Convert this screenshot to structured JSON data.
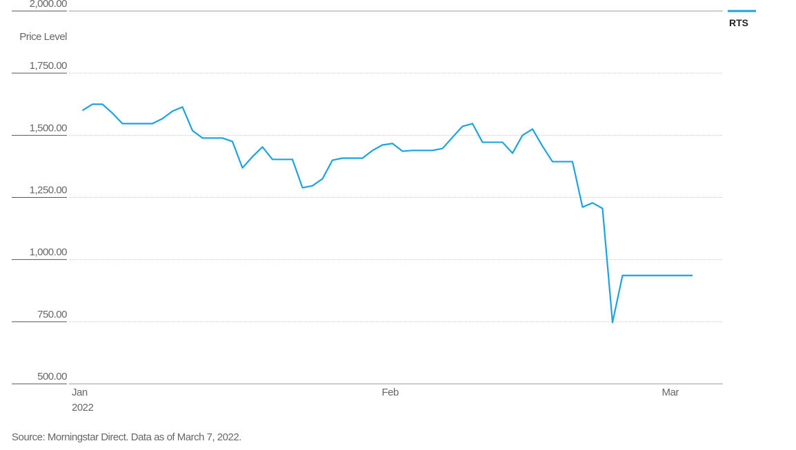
{
  "chart_data": {
    "type": "line",
    "categories": [
      "Jan",
      null,
      null,
      null,
      null,
      null,
      null,
      null,
      null,
      null,
      null,
      null,
      null,
      null,
      null,
      null,
      null,
      null,
      null,
      null,
      null,
      null,
      null,
      null,
      null,
      null,
      null,
      null,
      null,
      null,
      null,
      "Feb",
      null,
      null,
      null,
      null,
      null,
      null,
      null,
      null,
      null,
      null,
      null,
      null,
      null,
      null,
      null,
      null,
      null,
      null,
      null,
      null,
      null,
      null,
      null,
      null,
      null,
      null,
      null,
      "Mar",
      null,
      null,
      null
    ],
    "x_sublabel": "2022",
    "series": [
      {
        "name": "RTS",
        "color": "#1ba3e1",
        "values": [
          null,
          1600,
          1625,
          1625,
          1589,
          1547,
          1547,
          1547,
          1547,
          1567,
          1597,
          1614,
          1519,
          1489,
          1489,
          1489,
          1475,
          1369,
          1414,
          1453,
          1403,
          1403,
          1403,
          1289,
          1297,
          1325,
          1400,
          1408,
          1408,
          1408,
          1439,
          1461,
          1467,
          1436,
          1439,
          1439,
          1439,
          1447,
          1492,
          1536,
          1547,
          1472,
          1472,
          1472,
          1428,
          1500,
          1525,
          1456,
          1394,
          1394,
          1394,
          1211,
          1228,
          1206,
          747,
          936,
          936,
          936,
          936,
          936,
          936,
          936,
          936
        ]
      }
    ],
    "ylabel": "Price Level",
    "ylim": [
      500,
      2000
    ],
    "yticks": [
      {
        "value": 500,
        "label": "500.00"
      },
      {
        "value": 750,
        "label": "750.00"
      },
      {
        "value": 1000,
        "label": "1,000.00"
      },
      {
        "value": 1250,
        "label": "1,250.00"
      },
      {
        "value": 1500,
        "label": "1,500.00"
      },
      {
        "value": 1750,
        "label": "1,750.00"
      },
      {
        "value": 2000,
        "label": "2,000.00"
      }
    ],
    "grid": true,
    "legend": "top-right",
    "source": "Source: Morningstar Direct. Data as of March 7, 2022."
  }
}
